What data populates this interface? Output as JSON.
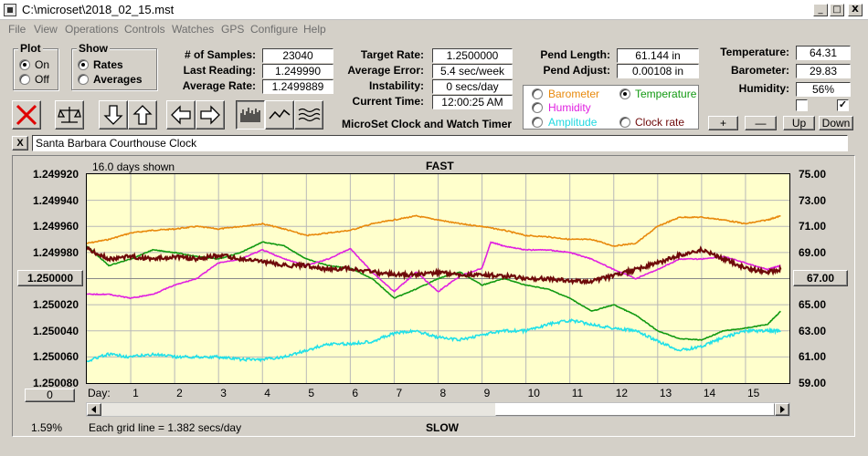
{
  "window": {
    "title": "C:\\microset\\2018_02_15.mst",
    "minimize_label": "_",
    "maximize_label": "□",
    "close_label": "X"
  },
  "menu": [
    "File",
    "View",
    "Operations",
    "Controls",
    "Watches",
    "GPS",
    "Configure",
    "Help"
  ],
  "plot_group": {
    "title": "Plot",
    "on_label": "On",
    "off_label": "Off",
    "selected": "On"
  },
  "show_group": {
    "title": "Show",
    "rates_label": "Rates",
    "averages_label": "Averages",
    "selected": "Rates"
  },
  "stats": {
    "samples_label": "# of Samples:",
    "samples": "23040",
    "last_label": "Last Reading:",
    "last": "1.249990",
    "avg_label": "Average Rate:",
    "avg": "1.2499889",
    "target_label": "Target Rate:",
    "target": "1.2500000",
    "error_label": "Average Error:",
    "error": "5.4 sec/week",
    "instab_label": "Instability:",
    "instab": "0 secs/day",
    "time_label": "Current Time:",
    "time": "12:00:25 AM",
    "app_name": "MicroSet Clock and Watch Timer",
    "pend_len_label": "Pend Length:",
    "pend_len": "61.144 in",
    "pend_adj_label": "Pend Adjust:",
    "pend_adj": "0.00108 in",
    "temp_label": "Temperature:",
    "temp": "64.31",
    "baro_label": "Barometer:",
    "baro": "29.83",
    "hum_label": "Humidity:",
    "hum": "56%"
  },
  "series_select": {
    "barometer": "Barometer",
    "temperature": "Temperature",
    "humidity": "Humidity",
    "amplitude": "Amplitude",
    "clock_rate": "Clock rate",
    "selected": "Temperature"
  },
  "scale_buttons": {
    "plus": "+",
    "minus": "—",
    "up": "Up",
    "down": "Down"
  },
  "clock_name": "Santa Barbara Courthouse Clock",
  "clear_label": "X",
  "colors": {
    "barometer": "#e8890c",
    "temperature": "#119911",
    "humidity": "#e020e0",
    "amplitude": "#20e0e8",
    "clock_rate": "#6e0a0a",
    "plot_bg": "#ffffcc"
  },
  "graph": {
    "days_shown": "16.0 days shown",
    "fast_label": "FAST",
    "slow_label": "SLOW",
    "grid_note": "Each grid line = 1.382 secs/day",
    "percent": "1.59%",
    "center_left": "1.250000",
    "center_right": "67.00",
    "zero_button": "0",
    "day_label": "Day:"
  },
  "chart_data": {
    "type": "line",
    "title": "",
    "top_label": "FAST",
    "bottom_label": "SLOW",
    "xlabel": "Day:",
    "x_ticks": [
      "1",
      "2",
      "3",
      "4",
      "5",
      "6",
      "7",
      "8",
      "9",
      "10",
      "11",
      "12",
      "13",
      "14",
      "15"
    ],
    "xlim": [
      0,
      16
    ],
    "y_left_ticks": [
      "1.249920",
      "1.249940",
      "1.249960",
      "1.249980",
      "1.250000",
      "1.250020",
      "1.250040",
      "1.250060",
      "1.250080"
    ],
    "ylim_left": [
      1.25008,
      1.24992
    ],
    "y_right_ticks": [
      "75.00",
      "73.00",
      "71.00",
      "69.00",
      "67.00",
      "65.00",
      "63.00",
      "61.00",
      "59.00"
    ],
    "ylim_right": [
      59,
      75
    ],
    "grid": true,
    "series": [
      {
        "name": "Barometer",
        "color": "#e8890c",
        "axis": "left",
        "x": [
          0,
          0.5,
          1,
          1.5,
          2,
          2.5,
          3,
          3.5,
          4,
          4.5,
          5,
          5.5,
          6,
          6.5,
          7,
          7.5,
          8,
          8.5,
          9,
          9.5,
          10,
          10.5,
          11,
          11.5,
          12,
          12.5,
          13,
          13.5,
          14,
          14.5,
          15,
          15.5,
          15.8
        ],
        "y": [
          1.249973,
          1.24997,
          1.249965,
          1.249963,
          1.249962,
          1.24996,
          1.249962,
          1.24996,
          1.249958,
          1.249962,
          1.249967,
          1.249965,
          1.249963,
          1.249958,
          1.249955,
          1.249952,
          1.249955,
          1.249958,
          1.24996,
          1.249963,
          1.249967,
          1.249968,
          1.24997,
          1.24997,
          1.249975,
          1.249973,
          1.24996,
          1.249953,
          1.249953,
          1.249955,
          1.249958,
          1.249955,
          1.249952
        ]
      },
      {
        "name": "Temperature",
        "color": "#119911",
        "axis": "left",
        "x": [
          0,
          0.5,
          1,
          1.5,
          2,
          2.5,
          3,
          3.5,
          4,
          4.5,
          5,
          5.5,
          6,
          6.5,
          7,
          7.5,
          8,
          8.5,
          9,
          9.5,
          10,
          10.5,
          11,
          11.5,
          12,
          12.5,
          13,
          13.5,
          14,
          14.5,
          15,
          15.5,
          15.8
        ],
        "y": [
          1.249975,
          1.24999,
          1.249985,
          1.249978,
          1.24998,
          1.249983,
          1.249985,
          1.24998,
          1.249972,
          1.249975,
          1.249985,
          1.24999,
          1.249992,
          1.25,
          1.250015,
          1.250008,
          1.25,
          1.249995,
          1.250005,
          1.25,
          1.250005,
          1.250008,
          1.250015,
          1.250025,
          1.25002,
          1.250028,
          1.25004,
          1.250046,
          1.250047,
          1.25004,
          1.250038,
          1.250035,
          1.250025
        ]
      },
      {
        "name": "Humidity",
        "color": "#e020e0",
        "axis": "left",
        "x": [
          0,
          0.5,
          1,
          1.5,
          2,
          2.5,
          3,
          3.5,
          4,
          4.5,
          5,
          5.5,
          6,
          6.5,
          7,
          7.5,
          8,
          8.5,
          9,
          9.2,
          9.5,
          10,
          10.5,
          11,
          11.5,
          12,
          12.5,
          13,
          13.5,
          14,
          14.5,
          15,
          15.5,
          15.8
        ],
        "y": [
          1.250012,
          1.250012,
          1.250015,
          1.250012,
          1.250005,
          1.25,
          1.249988,
          1.249985,
          1.249978,
          1.249985,
          1.24999,
          1.249985,
          1.249977,
          1.249995,
          1.25001,
          1.249995,
          1.25001,
          1.249998,
          1.249992,
          1.249972,
          1.249975,
          1.249978,
          1.249978,
          1.24998,
          1.249985,
          1.249993,
          1.25,
          1.249993,
          1.249985,
          1.249985,
          1.249983,
          1.249988,
          1.249993,
          1.24999
        ]
      },
      {
        "name": "Amplitude",
        "color": "#20e0e8",
        "axis": "left",
        "x": [
          0,
          0.5,
          1,
          1.5,
          2,
          2.5,
          3,
          3.5,
          4,
          4.5,
          5,
          5.5,
          6,
          6.5,
          7,
          7.5,
          8,
          8.5,
          9,
          9.5,
          10,
          10.5,
          11,
          11.5,
          12,
          12.5,
          13,
          13.5,
          14,
          14.5,
          15,
          15.5,
          15.8
        ],
        "y": [
          1.250063,
          1.250058,
          1.25006,
          1.250058,
          1.25006,
          1.25006,
          1.25006,
          1.250062,
          1.250062,
          1.25006,
          1.250055,
          1.25005,
          1.25005,
          1.250048,
          1.250042,
          1.25004,
          1.250045,
          1.250047,
          1.250043,
          1.25004,
          1.25004,
          1.250035,
          1.250032,
          1.250035,
          1.250038,
          1.25004,
          1.250048,
          1.250055,
          1.250052,
          1.250045,
          1.25004,
          1.25004,
          1.25004
        ]
      },
      {
        "name": "Clock rate",
        "color": "#6e0a0a",
        "axis": "left",
        "x": [
          0,
          0.5,
          1,
          1.5,
          2,
          2.5,
          3,
          3.5,
          4,
          4.5,
          5,
          5.5,
          6,
          6.5,
          7,
          7.5,
          8,
          8.5,
          9,
          9.5,
          10,
          10.5,
          11,
          11.5,
          12,
          12.5,
          13,
          13.5,
          14,
          14.5,
          15,
          15.5,
          15.8
        ],
        "y": [
          1.249977,
          1.249985,
          1.249983,
          1.249985,
          1.249983,
          1.249985,
          1.249982,
          1.249985,
          1.249987,
          1.24999,
          1.24999,
          1.249993,
          1.249992,
          1.249995,
          1.249997,
          1.249997,
          1.249995,
          1.249997,
          1.249997,
          1.249998,
          1.25,
          1.25,
          1.250002,
          1.250002,
          1.249998,
          1.249993,
          1.249988,
          1.249982,
          1.249978,
          1.249985,
          1.249992,
          1.249995,
          1.249993
        ]
      }
    ]
  }
}
